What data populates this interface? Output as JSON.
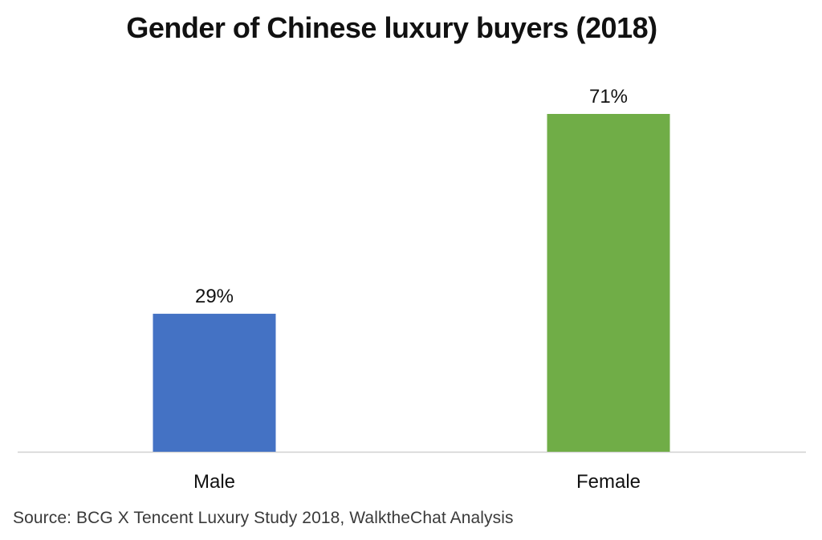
{
  "chart_data": {
    "type": "bar",
    "title": "Gender of Chinese luxury buyers (2018)",
    "categories": [
      "Male",
      "Female"
    ],
    "values": [
      29,
      71
    ],
    "data_labels": [
      "29%",
      "71%"
    ],
    "colors": [
      "#4472C4",
      "#70AD47"
    ],
    "xlabel": "",
    "ylabel": "",
    "ylim": [
      0,
      71
    ],
    "grid": false,
    "legend": "none"
  },
  "source": "Source: BCG X Tencent Luxury Study 2018, WalktheChat Analysis",
  "axis_color": "#d0d0d0"
}
